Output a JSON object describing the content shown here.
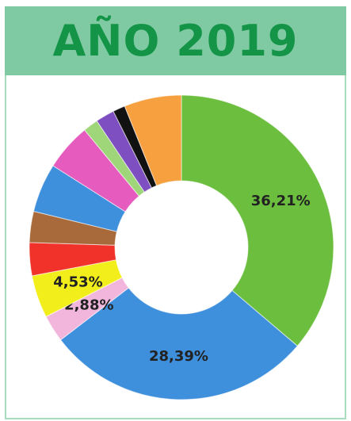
{
  "chart_data": {
    "type": "pie",
    "title": "AÑO 2019",
    "values": [
      36.21,
      28.39,
      2.88,
      4.53,
      3.5,
      3.3,
      5.2,
      5.0,
      1.6,
      2.0,
      1.3,
      6.09
    ],
    "value_labels": [
      "36,21%",
      "28,39%",
      "2,88%",
      "4,53%",
      null,
      null,
      null,
      null,
      null,
      null,
      null,
      null
    ],
    "colors": [
      "#6cbf3e",
      "#3e8fdc",
      "#f2b6dc",
      "#f2ee1c",
      "#f0322a",
      "#a86a3a",
      "#3e8fdc",
      "#e55cbe",
      "#9fd67a",
      "#7e4fc0",
      "#111111",
      "#f7a040"
    ],
    "donut": true
  }
}
